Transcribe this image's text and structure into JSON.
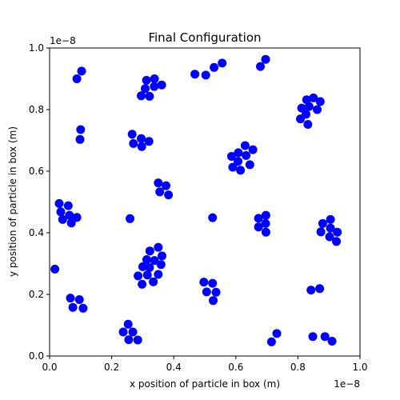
{
  "chart_data": {
    "type": "scatter",
    "title": "Final Configuration",
    "xlabel": "x position of particle in box (m)",
    "ylabel": "y position of particle in box (m)",
    "x_offset_label": "1e−8",
    "y_offset_label": "1e−8",
    "xlim": [
      0,
      1.0
    ],
    "ylim": [
      0,
      1.0
    ],
    "x_ticks": [
      "0.0",
      "0.2",
      "0.4",
      "0.6",
      "0.8",
      "1.0"
    ],
    "y_ticks": [
      "0.0",
      "0.2",
      "0.4",
      "0.6",
      "0.8",
      "1.0"
    ],
    "grid": false,
    "marker_color": "#0000ff",
    "points": [
      [
        0.088,
        0.9
      ],
      [
        0.103,
        0.925
      ],
      [
        0.312,
        0.895
      ],
      [
        0.338,
        0.9
      ],
      [
        0.295,
        0.845
      ],
      [
        0.322,
        0.843
      ],
      [
        0.308,
        0.868
      ],
      [
        0.337,
        0.875
      ],
      [
        0.361,
        0.88
      ],
      [
        0.468,
        0.915
      ],
      [
        0.503,
        0.912
      ],
      [
        0.53,
        0.937
      ],
      [
        0.556,
        0.951
      ],
      [
        0.679,
        0.94
      ],
      [
        0.696,
        0.963
      ],
      [
        0.828,
        0.832
      ],
      [
        0.85,
        0.838
      ],
      [
        0.872,
        0.826
      ],
      [
        0.812,
        0.805
      ],
      [
        0.836,
        0.81
      ],
      [
        0.862,
        0.8
      ],
      [
        0.826,
        0.785
      ],
      [
        0.808,
        0.77
      ],
      [
        0.832,
        0.752
      ],
      [
        0.1,
        0.735
      ],
      [
        0.098,
        0.703
      ],
      [
        0.266,
        0.72
      ],
      [
        0.27,
        0.69
      ],
      [
        0.295,
        0.706
      ],
      [
        0.297,
        0.68
      ],
      [
        0.32,
        0.697
      ],
      [
        0.63,
        0.683
      ],
      [
        0.655,
        0.67
      ],
      [
        0.608,
        0.66
      ],
      [
        0.633,
        0.651
      ],
      [
        0.586,
        0.648
      ],
      [
        0.607,
        0.632
      ],
      [
        0.59,
        0.613
      ],
      [
        0.615,
        0.603
      ],
      [
        0.645,
        0.621
      ],
      [
        0.35,
        0.562
      ],
      [
        0.375,
        0.553
      ],
      [
        0.355,
        0.533
      ],
      [
        0.383,
        0.523
      ],
      [
        0.031,
        0.495
      ],
      [
        0.06,
        0.488
      ],
      [
        0.036,
        0.468
      ],
      [
        0.064,
        0.457
      ],
      [
        0.088,
        0.45
      ],
      [
        0.042,
        0.443
      ],
      [
        0.07,
        0.432
      ],
      [
        0.259,
        0.446
      ],
      [
        0.525,
        0.449
      ],
      [
        0.673,
        0.447
      ],
      [
        0.697,
        0.457
      ],
      [
        0.696,
        0.43
      ],
      [
        0.673,
        0.419
      ],
      [
        0.697,
        0.402
      ],
      [
        0.905,
        0.443
      ],
      [
        0.88,
        0.43
      ],
      [
        0.905,
        0.415
      ],
      [
        0.874,
        0.403
      ],
      [
        0.902,
        0.387
      ],
      [
        0.927,
        0.402
      ],
      [
        0.924,
        0.372
      ],
      [
        0.017,
        0.282
      ],
      [
        0.35,
        0.353
      ],
      [
        0.323,
        0.341
      ],
      [
        0.362,
        0.325
      ],
      [
        0.313,
        0.313
      ],
      [
        0.338,
        0.31
      ],
      [
        0.3,
        0.29
      ],
      [
        0.322,
        0.287
      ],
      [
        0.359,
        0.297
      ],
      [
        0.35,
        0.265
      ],
      [
        0.315,
        0.263
      ],
      [
        0.285,
        0.26
      ],
      [
        0.334,
        0.241
      ],
      [
        0.298,
        0.233
      ],
      [
        0.497,
        0.24
      ],
      [
        0.525,
        0.236
      ],
      [
        0.506,
        0.208
      ],
      [
        0.536,
        0.207
      ],
      [
        0.527,
        0.18
      ],
      [
        0.842,
        0.214
      ],
      [
        0.87,
        0.219
      ],
      [
        0.067,
        0.188
      ],
      [
        0.096,
        0.183
      ],
      [
        0.075,
        0.158
      ],
      [
        0.108,
        0.155
      ],
      [
        0.253,
        0.103
      ],
      [
        0.237,
        0.078
      ],
      [
        0.268,
        0.078
      ],
      [
        0.255,
        0.053
      ],
      [
        0.284,
        0.052
      ],
      [
        0.732,
        0.073
      ],
      [
        0.715,
        0.046
      ],
      [
        0.848,
        0.063
      ],
      [
        0.887,
        0.063
      ],
      [
        0.91,
        0.048
      ]
    ]
  }
}
